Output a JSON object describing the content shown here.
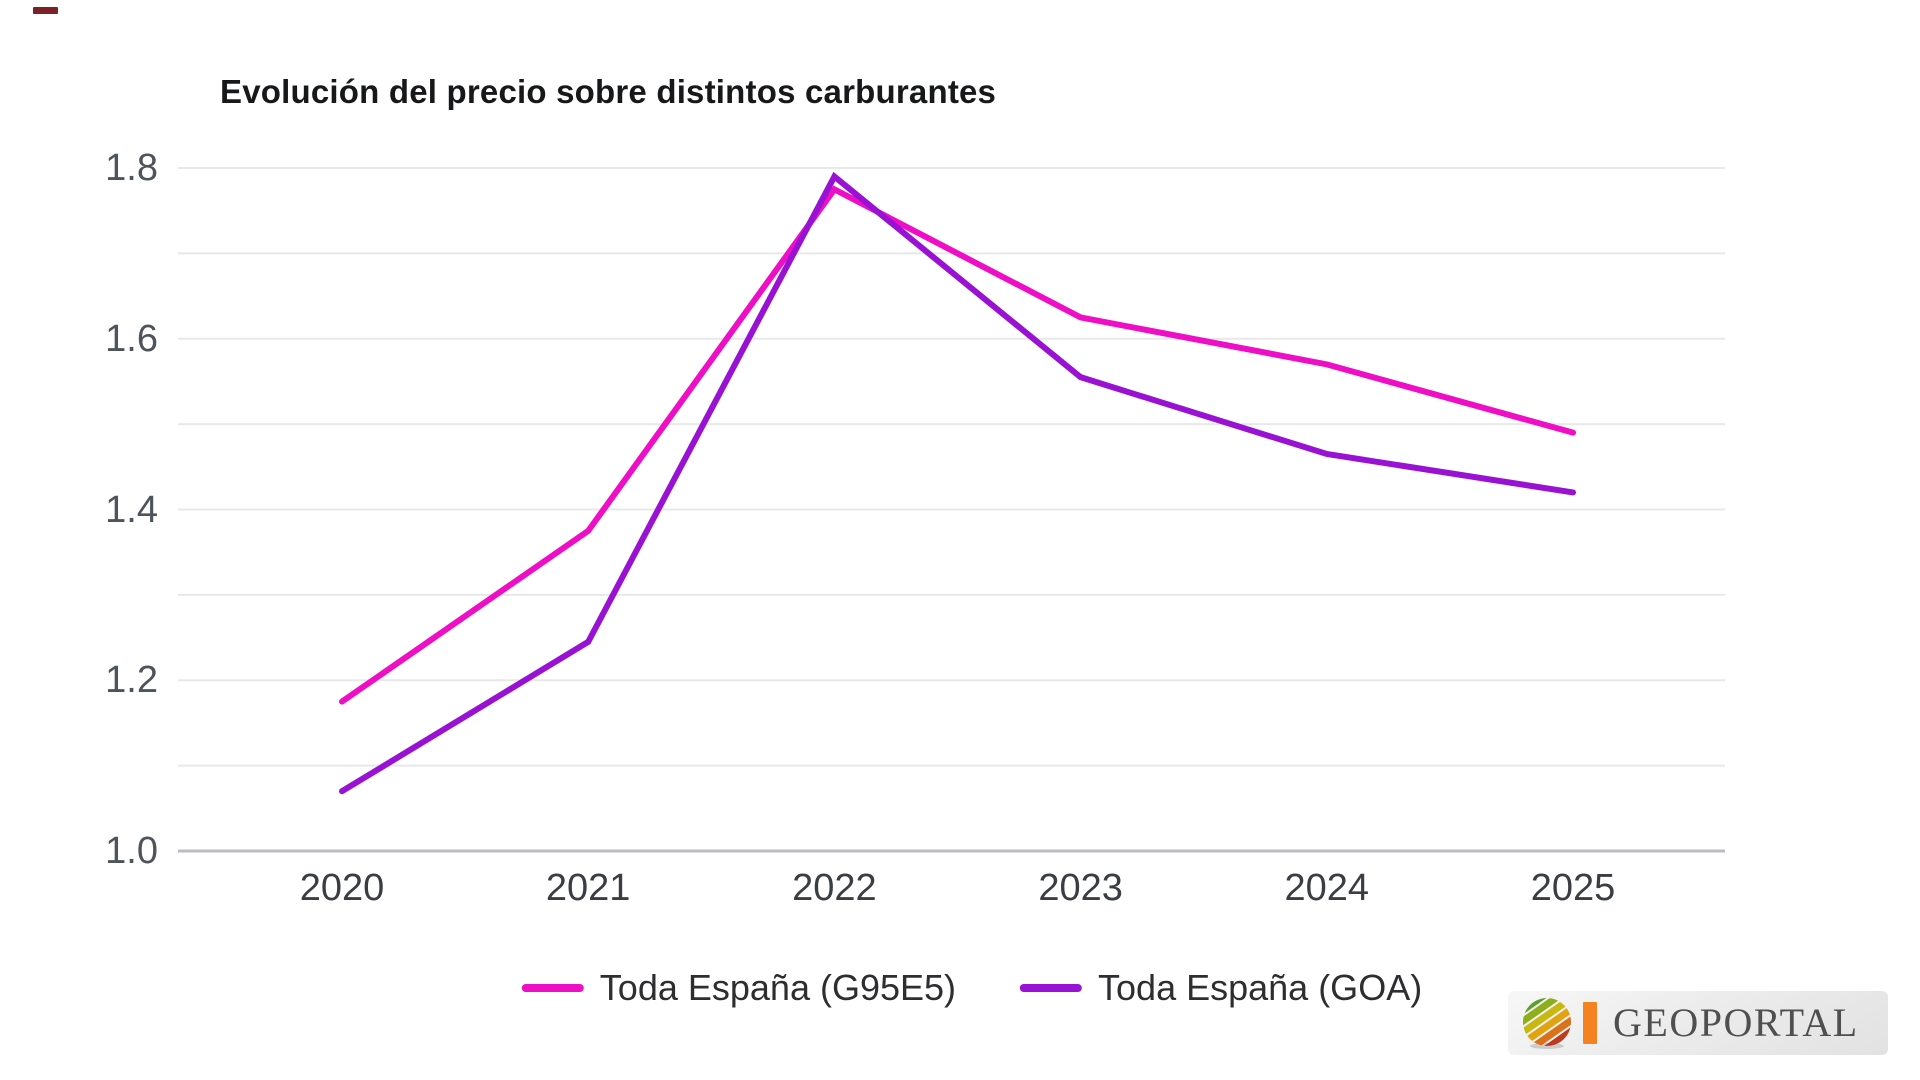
{
  "chart_data": {
    "type": "line",
    "title": "Evolución del precio sobre distintos carburantes",
    "categories": [
      "2020",
      "2021",
      "2022",
      "2023",
      "2024",
      "2025"
    ],
    "series": [
      {
        "name": "Toda España (G95E5)",
        "color": "#ee0ec6",
        "values": [
          1.175,
          1.375,
          1.775,
          1.625,
          1.57,
          1.49
        ]
      },
      {
        "name": "Toda España (GOA)",
        "color": "#9912d4",
        "values": [
          1.07,
          1.245,
          1.79,
          1.555,
          1.465,
          1.42
        ]
      }
    ],
    "xlabel": "",
    "ylabel": "",
    "ylim": [
      1.0,
      1.8
    ],
    "yticks_labeled": [
      "1.0",
      "1.2",
      "1.4",
      "1.6",
      "1.8"
    ],
    "grid_step": 0.1,
    "grid": true,
    "legend_position": "bottom"
  },
  "colors": {
    "gridline": "#e8e8e8",
    "axis_line": "#b9bdc1",
    "y_tick_text": "#4d545c",
    "x_tick_text": "#3a3e43",
    "corner_mark": "#7d2128",
    "logo_accent": "#f58220",
    "logo_text": "#4f4f4f"
  },
  "logo": {
    "text": "GEOPORTAL"
  }
}
